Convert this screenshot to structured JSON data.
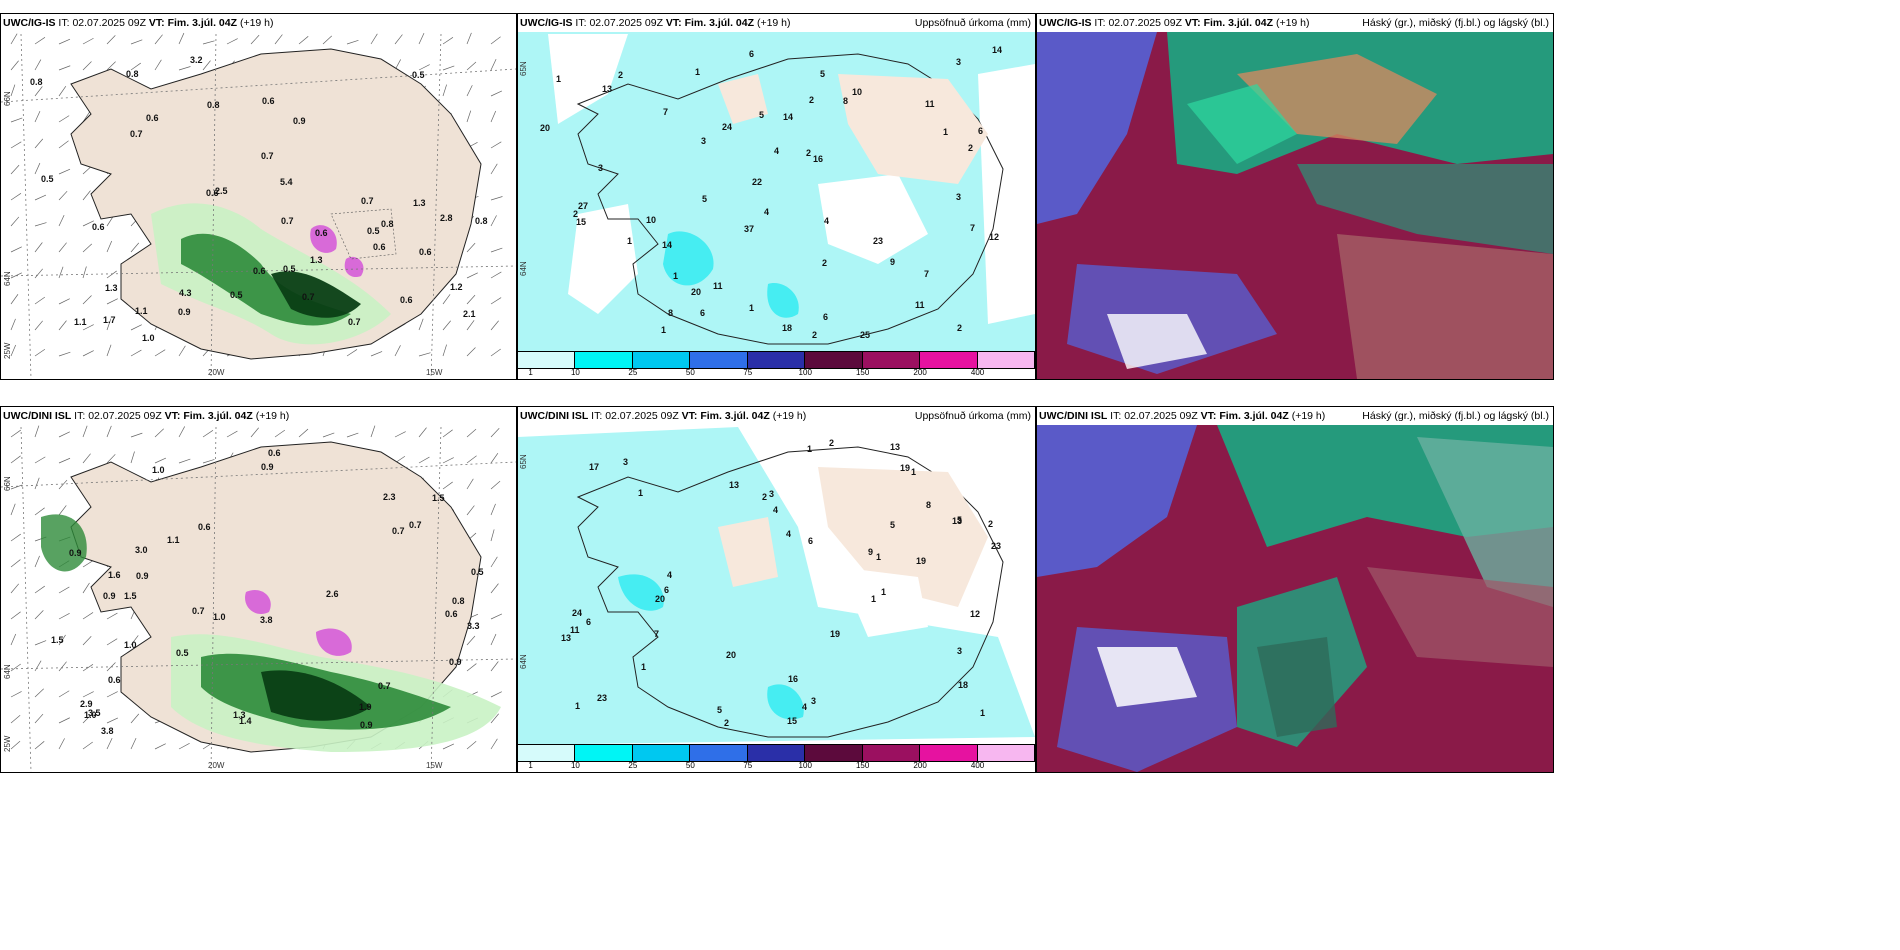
{
  "panels": [
    {
      "id": "p1",
      "model": "UWC/IG-IS",
      "it_label": "IT:",
      "it": "02.07.2025 09Z",
      "vt_label": "VT:",
      "vt": "Fim. 3.júl. 04Z",
      "lead": "(+19 h)",
      "right_title": "",
      "lat_labels": [
        "66N",
        "64N",
        "25W"
      ],
      "lon_labels": [
        "20W",
        "15W"
      ],
      "values": [
        "1.3",
        "0.7",
        "0.7",
        "0.5",
        "0.6",
        "0.6",
        "0.5",
        "0.6",
        "0.6",
        "0.7",
        "0.8",
        "0.9",
        "0.7",
        "0.6",
        "0.5",
        "0.9",
        "2.5",
        "0.7",
        "0.8",
        "0.7",
        "0.6",
        "1.3",
        "0.5",
        "1.3",
        "1.2",
        "0.8",
        "0.6",
        "0.6",
        "2.8",
        "1.7",
        "4.3",
        "5.4",
        "3.2",
        "0.8",
        "0.5",
        "1.1",
        "0.6",
        "2.1",
        "1.1",
        "1.0",
        "0.8"
      ]
    },
    {
      "id": "p2",
      "model": "UWC/IG-IS",
      "it_label": "IT:",
      "it": "02.07.2025 09Z",
      "vt_label": "VT:",
      "vt": "Fim. 3.júl. 04Z",
      "lead": "(+19 h)",
      "right_title": "Uppsöfnuð úrkoma (mm)",
      "lat_labels": [
        "65N",
        "64N"
      ],
      "values": [
        "3",
        "5",
        "6",
        "4",
        "2",
        "2",
        "1",
        "1",
        "2",
        "2",
        "4",
        "8",
        "7",
        "6",
        "13",
        "25",
        "15",
        "14",
        "14",
        "24",
        "16",
        "37",
        "22",
        "20",
        "23",
        "20",
        "10",
        "11",
        "12",
        "14",
        "27",
        "18",
        "11",
        "10",
        "9",
        "4",
        "5",
        "3",
        "6",
        "2",
        "2",
        "7",
        "2",
        "6",
        "8",
        "11",
        "5",
        "7",
        "1",
        "1",
        "2",
        "1",
        "3",
        "1",
        "1",
        "3"
      ],
      "colorbar": {
        "labels": [
          "1",
          "10",
          "25",
          "50",
          "75",
          "100",
          "150",
          "200",
          "400"
        ],
        "colors": [
          "#d6fbfb",
          "#00f5f5",
          "#00c8f0",
          "#2f6fe8",
          "#2a2fa8",
          "#5c0a3c",
          "#9b1060",
          "#e612a0",
          "#f7b7f0"
        ]
      }
    },
    {
      "id": "p3",
      "model": "UWC/IG-IS",
      "it_label": "IT:",
      "it": "02.07.2025 09Z",
      "vt_label": "VT:",
      "vt": "Fim. 3.júl. 04Z",
      "lead": "(+19 h)",
      "right_title": "Háský (gr.), miðský (fj.bl.) og lágský (bl.)"
    },
    {
      "id": "p4",
      "model": "UWC/DINI ISL",
      "it_label": "IT:",
      "it": "02.07.2025 09Z",
      "vt_label": "VT:",
      "vt": "Fim. 3.júl. 04Z",
      "lead": "(+19 h)",
      "right_title": "",
      "lat_labels": [
        "66N",
        "64N",
        "25W"
      ],
      "lon_labels": [
        "20W",
        "15W"
      ],
      "values": [
        "0.6",
        "0.6",
        "1.3",
        "1.0",
        "0.9",
        "0.5",
        "0.5",
        "0.6",
        "0.9",
        "1.5",
        "3.8",
        "0.7",
        "3.5",
        "0.7",
        "1.6",
        "0.6",
        "1.5",
        "0.9",
        "1.0",
        "3.3",
        "1.9",
        "2.9",
        "3.8",
        "1.0",
        "0.7",
        "0.9",
        "0.7",
        "0.8",
        "1.1",
        "1.4",
        "1.5",
        "1.0",
        "0.9",
        "0.9",
        "2.6",
        "3.0",
        "2.3"
      ]
    },
    {
      "id": "p5",
      "model": "UWC/DINI ISL",
      "it_label": "IT:",
      "it": "02.07.2025 09Z",
      "vt_label": "VT:",
      "vt": "Fim. 3.júl. 04Z",
      "lead": "(+19 h)",
      "right_title": "Uppsöfnuð úrkoma (mm)",
      "lat_labels": [
        "65N",
        "64N"
      ],
      "values": [
        "2",
        "4",
        "5",
        "9",
        "6",
        "4",
        "13",
        "19",
        "18",
        "24",
        "23",
        "11",
        "13",
        "20",
        "15",
        "16",
        "13",
        "20",
        "12",
        "17",
        "19",
        "13",
        "23",
        "19",
        "8",
        "6",
        "5",
        "3",
        "2",
        "1",
        "1",
        "3",
        "2",
        "1",
        "1",
        "4",
        "5",
        "7",
        "6",
        "1",
        "1",
        "3",
        "1",
        "1",
        "2",
        "4",
        "3",
        "1"
      ],
      "colorbar": {
        "labels": [
          "1",
          "10",
          "25",
          "50",
          "75",
          "100",
          "150",
          "200",
          "400"
        ],
        "colors": [
          "#d6fbfb",
          "#00f5f5",
          "#00c8f0",
          "#2f6fe8",
          "#2a2fa8",
          "#5c0a3c",
          "#9b1060",
          "#e612a0",
          "#f7b7f0"
        ]
      }
    },
    {
      "id": "p6",
      "model": "UWC/DINI ISL",
      "it_label": "IT:",
      "it": "02.07.2025 09Z",
      "vt_label": "VT:",
      "vt": "Fim. 3.júl. 04Z",
      "lead": "(+19 h)",
      "right_title": "Háský (gr.), miðský (fj.bl.) og lágský (bl.)"
    }
  ],
  "colors": {
    "land": "#efe2d6",
    "precip_light": "#c9f2c4",
    "precip_mid": "#2e8b3a",
    "precip_dark": "#0a3e15",
    "snow_pink": "#d86ad8",
    "accum_cyan": "#aef6f6",
    "cloud_high": "#1aa882",
    "cloud_mid": "#8a1a48",
    "cloud_low": "#5a5ac8"
  }
}
